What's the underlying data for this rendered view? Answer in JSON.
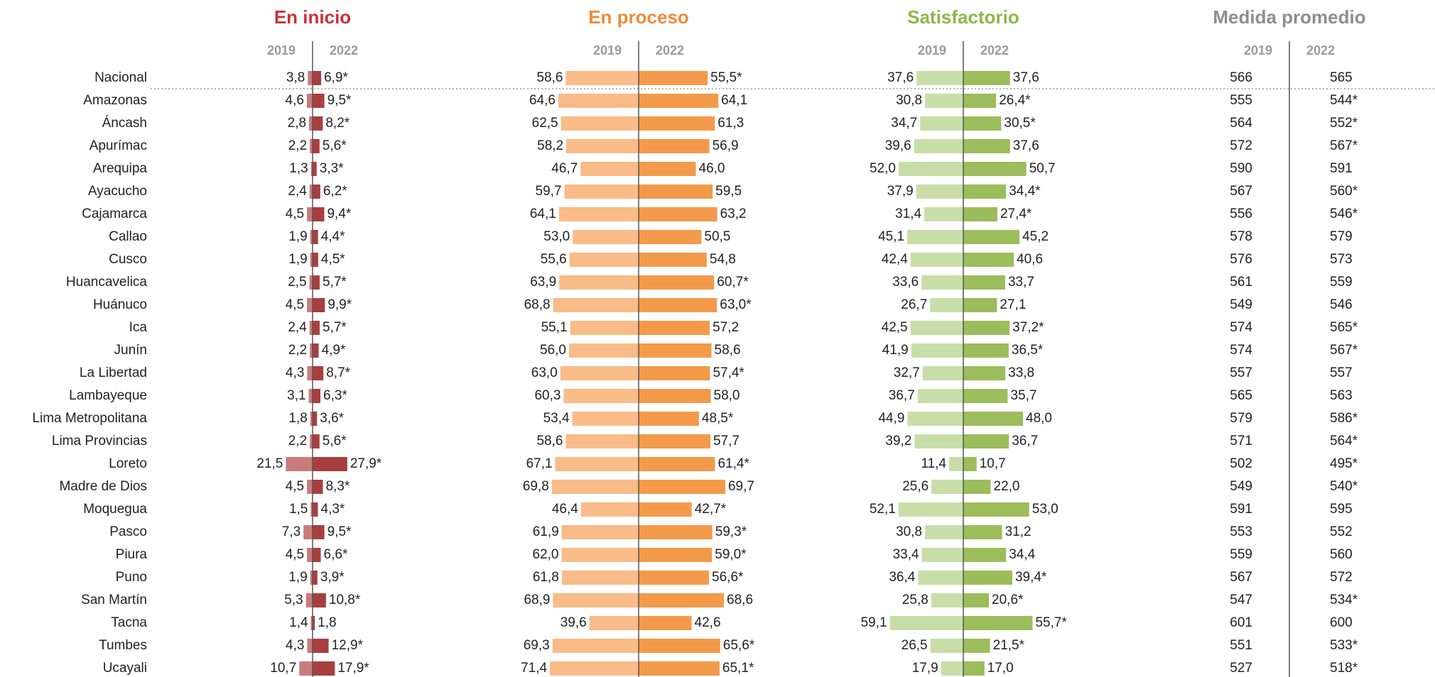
{
  "categories": [
    "Nacional",
    "Amazonas",
    "Áncash",
    "Apurímac",
    "Arequipa",
    "Ayacucho",
    "Cajamarca",
    "Callao",
    "Cusco",
    "Huancavelica",
    "Huánuco",
    "Ica",
    "Junín",
    "La Libertad",
    "Lambayeque",
    "Lima Metropolitana",
    "Lima Provincias",
    "Loreto",
    "Madre de Dios",
    "Moquegua",
    "Pasco",
    "Piura",
    "Puno",
    "San Martín",
    "Tacna",
    "Tumbes",
    "Ucayali"
  ],
  "chart_data": [
    {
      "type": "butterfly",
      "title": "En inicio",
      "title_color": "#c8323c",
      "series": [
        {
          "name": "2019",
          "color": "#c97b7b",
          "values": [
            3.8,
            4.6,
            2.8,
            2.2,
            1.3,
            2.4,
            4.5,
            1.9,
            1.9,
            2.5,
            4.5,
            2.4,
            2.2,
            4.3,
            3.1,
            1.8,
            2.2,
            21.5,
            4.5,
            1.5,
            7.3,
            4.5,
            1.9,
            5.3,
            1.4,
            4.3,
            10.7
          ],
          "value_labels": [
            "3,8",
            "4,6",
            "2,8",
            "2,2",
            "1,3",
            "2,4",
            "4,5",
            "1,9",
            "1,9",
            "2,5",
            "4,5",
            "2,4",
            "2,2",
            "4,3",
            "3,1",
            "1,8",
            "2,2",
            "21,5",
            "4,5",
            "1,5",
            "7,3",
            "4,5",
            "1,9",
            "5,3",
            "1,4",
            "4,3",
            "10,7"
          ]
        },
        {
          "name": "2022",
          "color": "#a83f3f",
          "values": [
            6.9,
            9.5,
            8.2,
            5.6,
            3.3,
            6.2,
            9.4,
            4.4,
            4.5,
            5.7,
            9.9,
            5.7,
            4.9,
            8.7,
            6.3,
            3.6,
            5.6,
            27.9,
            8.3,
            4.3,
            9.5,
            6.6,
            3.9,
            10.8,
            1.8,
            12.9,
            17.9
          ],
          "value_labels": [
            "6,9*",
            "9,5*",
            "8,2*",
            "5,6*",
            "3,3*",
            "6,2*",
            "9,4*",
            "4,4*",
            "4,5*",
            "5,7*",
            "9,9*",
            "5,7*",
            "4,9*",
            "8,7*",
            "6,3*",
            "3,6*",
            "5,6*",
            "27,9*",
            "8,3*",
            "4,3*",
            "9,5*",
            "6,6*",
            "3,9*",
            "10,8*",
            "1,8",
            "12,9*",
            "17,9*"
          ]
        }
      ]
    },
    {
      "type": "butterfly",
      "title": "En proceso",
      "title_color": "#ef8a3c",
      "series": [
        {
          "name": "2019",
          "color": "#f9bb88",
          "values": [
            58.6,
            64.6,
            62.5,
            58.2,
            46.7,
            59.7,
            64.1,
            53.0,
            55.6,
            63.9,
            68.8,
            55.1,
            56.0,
            63.0,
            60.3,
            53.4,
            58.6,
            67.1,
            69.8,
            46.4,
            61.9,
            62.0,
            61.8,
            68.9,
            39.6,
            69.3,
            71.4
          ],
          "value_labels": [
            "58,6",
            "64,6",
            "62,5",
            "58,2",
            "46,7",
            "59,7",
            "64,1",
            "53,0",
            "55,6",
            "63,9",
            "68,8",
            "55,1",
            "56,0",
            "63,0",
            "60,3",
            "53,4",
            "58,6",
            "67,1",
            "69,8",
            "46,4",
            "61,9",
            "62,0",
            "61,8",
            "68,9",
            "39,6",
            "69,3",
            "71,4"
          ]
        },
        {
          "name": "2022",
          "color": "#f39a4a",
          "values": [
            55.5,
            64.1,
            61.3,
            56.9,
            46.0,
            59.5,
            63.2,
            50.5,
            54.8,
            60.7,
            63.0,
            57.2,
            58.6,
            57.4,
            58.0,
            48.5,
            57.7,
            61.4,
            69.7,
            42.7,
            59.3,
            59.0,
            56.6,
            68.6,
            42.6,
            65.6,
            65.1
          ],
          "value_labels": [
            "55,5*",
            "64,1",
            "61,3",
            "56,9",
            "46,0",
            "59,5",
            "63,2",
            "50,5",
            "54,8",
            "60,7*",
            "63,0*",
            "57,2",
            "58,6",
            "57,4*",
            "58,0",
            "48,5*",
            "57,7",
            "61,4*",
            "69,7",
            "42,7*",
            "59,3*",
            "59,0*",
            "56,6*",
            "68,6",
            "42,6",
            "65,6*",
            "65,1*"
          ]
        }
      ]
    },
    {
      "type": "butterfly",
      "title": "Satisfactorio",
      "title_color": "#8cb84a",
      "series": [
        {
          "name": "2019",
          "color": "#c8dea8",
          "values": [
            37.6,
            30.8,
            34.7,
            39.6,
            52.0,
            37.9,
            31.4,
            45.1,
            42.4,
            33.6,
            26.7,
            42.5,
            41.9,
            32.7,
            36.7,
            44.9,
            39.2,
            11.4,
            25.6,
            52.1,
            30.8,
            33.4,
            36.4,
            25.8,
            59.1,
            26.5,
            17.9
          ],
          "value_labels": [
            "37,6",
            "30,8",
            "34,7",
            "39,6",
            "52,0",
            "37,9",
            "31,4",
            "45,1",
            "42,4",
            "33,6",
            "26,7",
            "42,5",
            "41,9",
            "32,7",
            "36,7",
            "44,9",
            "39,2",
            "11,4",
            "25,6",
            "52,1",
            "30,8",
            "33,4",
            "36,4",
            "25,8",
            "59,1",
            "26,5",
            "17,9"
          ]
        },
        {
          "name": "2022",
          "color": "#9cbd5b",
          "values": [
            37.6,
            26.4,
            30.5,
            37.6,
            50.7,
            34.4,
            27.4,
            45.2,
            40.6,
            33.7,
            27.1,
            37.2,
            36.5,
            33.8,
            35.7,
            48.0,
            36.7,
            10.7,
            22.0,
            53.0,
            31.2,
            34.4,
            39.4,
            20.6,
            55.7,
            21.5,
            17.0
          ],
          "value_labels": [
            "37,6",
            "26,4*",
            "30,5*",
            "37,6",
            "50,7",
            "34,4*",
            "27,4*",
            "45,2",
            "40,6",
            "33,7",
            "27,1",
            "37,2*",
            "36,5*",
            "33,8",
            "35,7",
            "48,0",
            "36,7",
            "10,7",
            "22,0",
            "53,0",
            "31,2",
            "34,4",
            "39,4*",
            "20,6*",
            "55,7*",
            "21,5*",
            "17,0"
          ]
        }
      ]
    },
    {
      "type": "table",
      "title": "Medida promedio",
      "title_color": "#8e8e8e",
      "series": [
        {
          "name": "2019",
          "values": [
            566,
            555,
            564,
            572,
            590,
            567,
            556,
            578,
            576,
            561,
            549,
            574,
            574,
            557,
            565,
            579,
            571,
            502,
            549,
            591,
            553,
            559,
            567,
            547,
            601,
            551,
            527
          ]
        },
        {
          "name": "2022",
          "values": [
            565,
            544,
            552,
            567,
            591,
            560,
            546,
            579,
            573,
            559,
            546,
            565,
            567,
            557,
            563,
            586,
            564,
            495,
            540,
            595,
            552,
            560,
            572,
            534,
            600,
            533,
            518
          ],
          "value_labels": [
            "565",
            "544*",
            "552*",
            "567*",
            "591",
            "560*",
            "546*",
            "579",
            "573",
            "559",
            "546",
            "565*",
            "567*",
            "557",
            "563",
            "586*",
            "564*",
            "495*",
            "540*",
            "595",
            "552",
            "560",
            "572",
            "534*",
            "600",
            "533*",
            "518*"
          ]
        }
      ]
    }
  ]
}
